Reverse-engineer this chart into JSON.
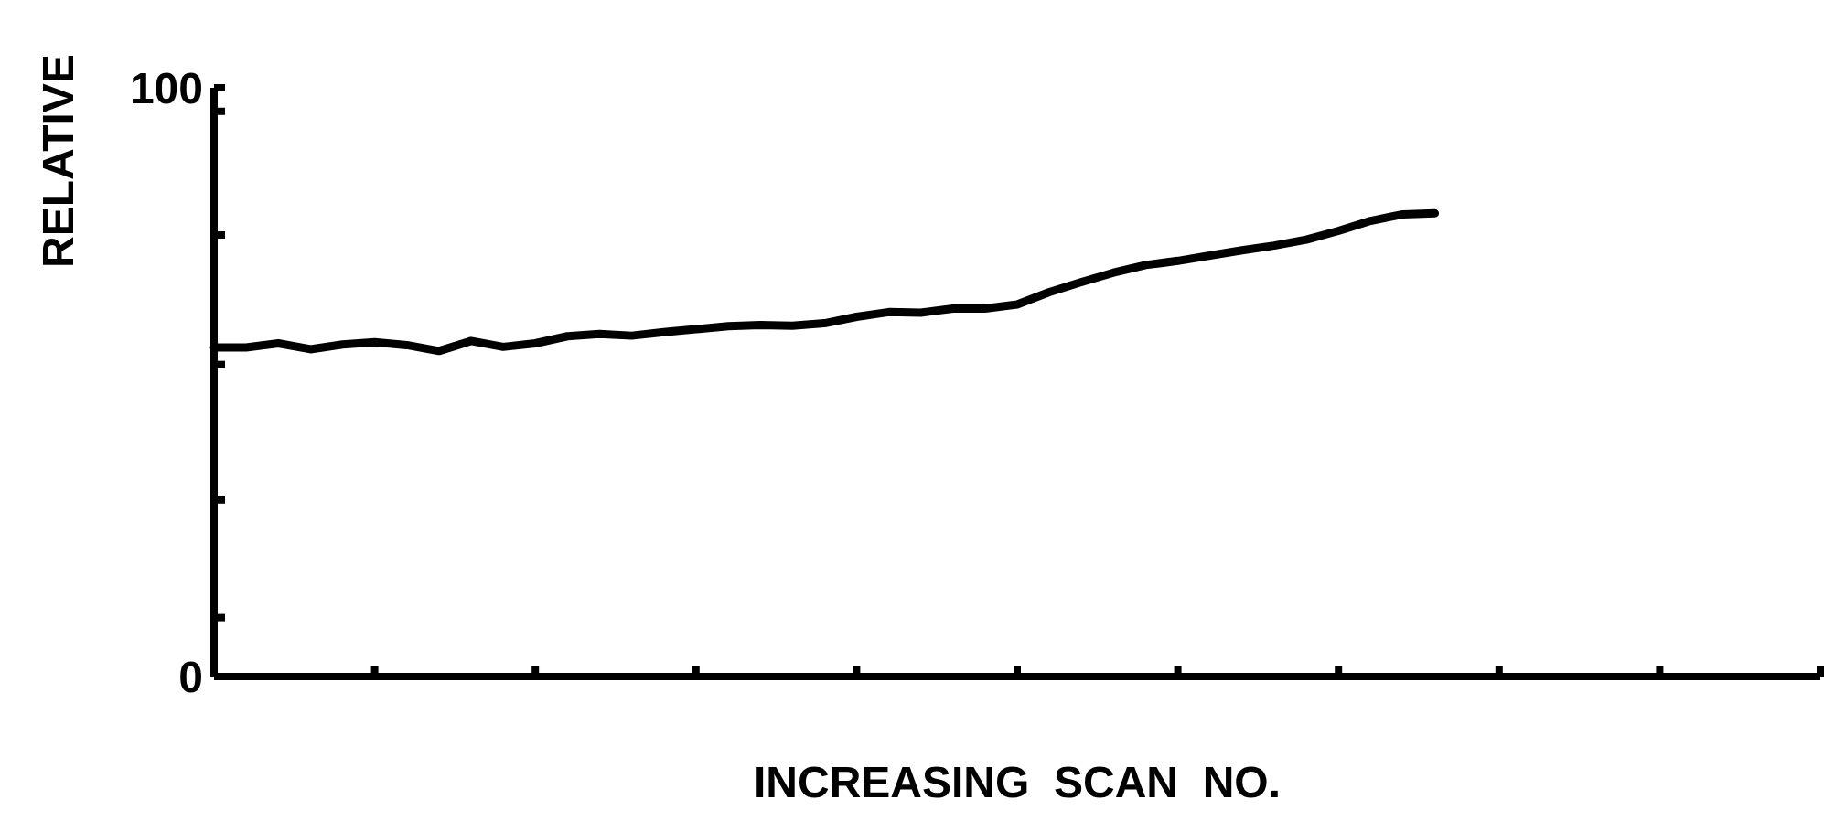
{
  "chart_data": {
    "type": "line",
    "xlabel": "INCREASING  SCAN  NO.",
    "ylabel": "RELATIVE",
    "color": "#000000",
    "categories": [
      null,
      null,
      null,
      null,
      null,
      null,
      null,
      null,
      null,
      null,
      null,
      null,
      null,
      null,
      null,
      null,
      null,
      null,
      null,
      null,
      null,
      null,
      null,
      null,
      null,
      null,
      null,
      null,
      null,
      null,
      null,
      null,
      null,
      null,
      null,
      null,
      null,
      null,
      null,
      null,
      null,
      null,
      null,
      null,
      null,
      null,
      null,
      null,
      null,
      null,
      null
    ],
    "values": [
      55.9,
      55.9,
      56.6,
      55.6,
      56.4,
      56.8,
      56.3,
      55.3,
      57.0,
      56.0,
      56.6,
      57.8,
      58.2,
      57.9,
      58.5,
      59.0,
      59.5,
      59.7,
      59.6,
      60.0,
      61.1,
      61.9,
      61.8,
      62.5,
      62.5,
      63.2,
      65.3,
      67.0,
      68.6,
      69.9,
      70.6,
      71.5,
      72.4,
      73.2,
      74.2,
      75.7,
      77.4,
      78.5,
      78.7,
      null,
      null,
      null,
      null,
      null,
      null,
      null,
      null,
      null,
      null,
      null,
      null
    ],
    "ylim": [
      0,
      100
    ],
    "yticks": [
      0,
      {
        "value": 10,
        "label": null
      },
      {
        "value": 30,
        "label": null
      },
      {
        "value": 53,
        "label": null
      },
      {
        "value": 75,
        "label": null
      },
      {
        "value": 96,
        "label": null
      },
      100
    ],
    "marker": "none",
    "line_style": "solid",
    "grid": false,
    "legend": false
  }
}
